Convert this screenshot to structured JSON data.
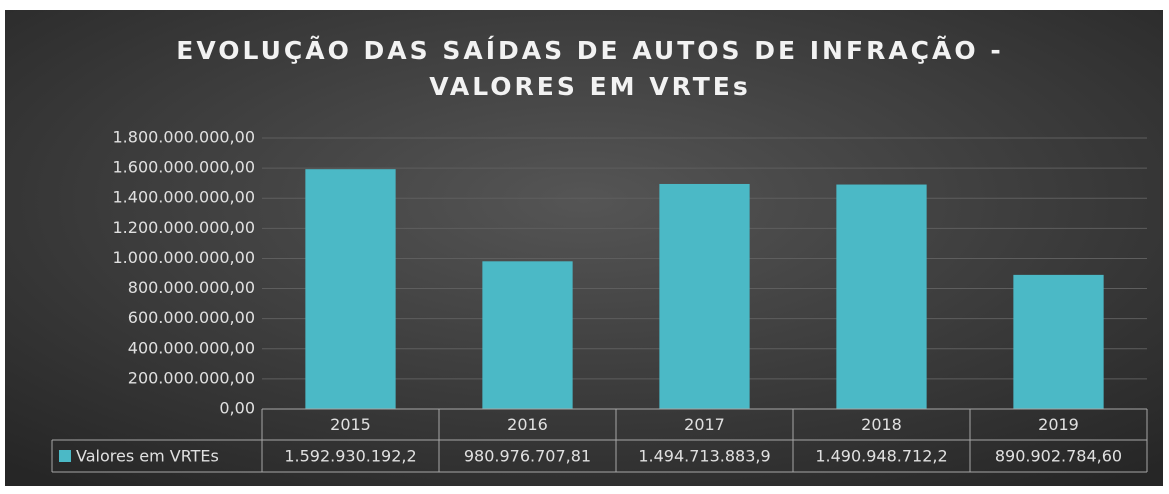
{
  "chart_data": {
    "type": "bar",
    "title": [
      "EVOLUÇÃO DAS SAÍDAS DE AUTOS DE INFRAÇÃO  -",
      "VALORES EM VRTEs"
    ],
    "categories": [
      "2015",
      "2016",
      "2017",
      "2018",
      "2019"
    ],
    "series": [
      {
        "name": "Valores em VRTEs",
        "color": "#4bb9c6",
        "values": [
          1592930192.2,
          980976707.81,
          1494713883.9,
          1490948712.2,
          890902784.6
        ],
        "value_labels": [
          "1.592.930.192,2",
          "980.976.707,81",
          "1.494.713.883,9",
          "1.490.948.712,2",
          "890.902.784,60"
        ]
      }
    ],
    "ylim": [
      0,
      1800000000
    ],
    "yticks": [
      {
        "value": 0,
        "label": "0,00"
      },
      {
        "value": 200000000,
        "label": "200.000.000,00"
      },
      {
        "value": 400000000,
        "label": "400.000.000,00"
      },
      {
        "value": 600000000,
        "label": "600.000.000,00"
      },
      {
        "value": 800000000,
        "label": "800.000.000,00"
      },
      {
        "value": 1000000000,
        "label": "1.000.000.000,00"
      },
      {
        "value": 1200000000,
        "label": "1.200.000.000,00"
      },
      {
        "value": 1400000000,
        "label": "1.400.000.000,00"
      },
      {
        "value": 1600000000,
        "label": "1.600.000.000,00"
      },
      {
        "value": 1800000000,
        "label": "1.800.000.000,00"
      }
    ],
    "grid": true,
    "data_table": true
  }
}
